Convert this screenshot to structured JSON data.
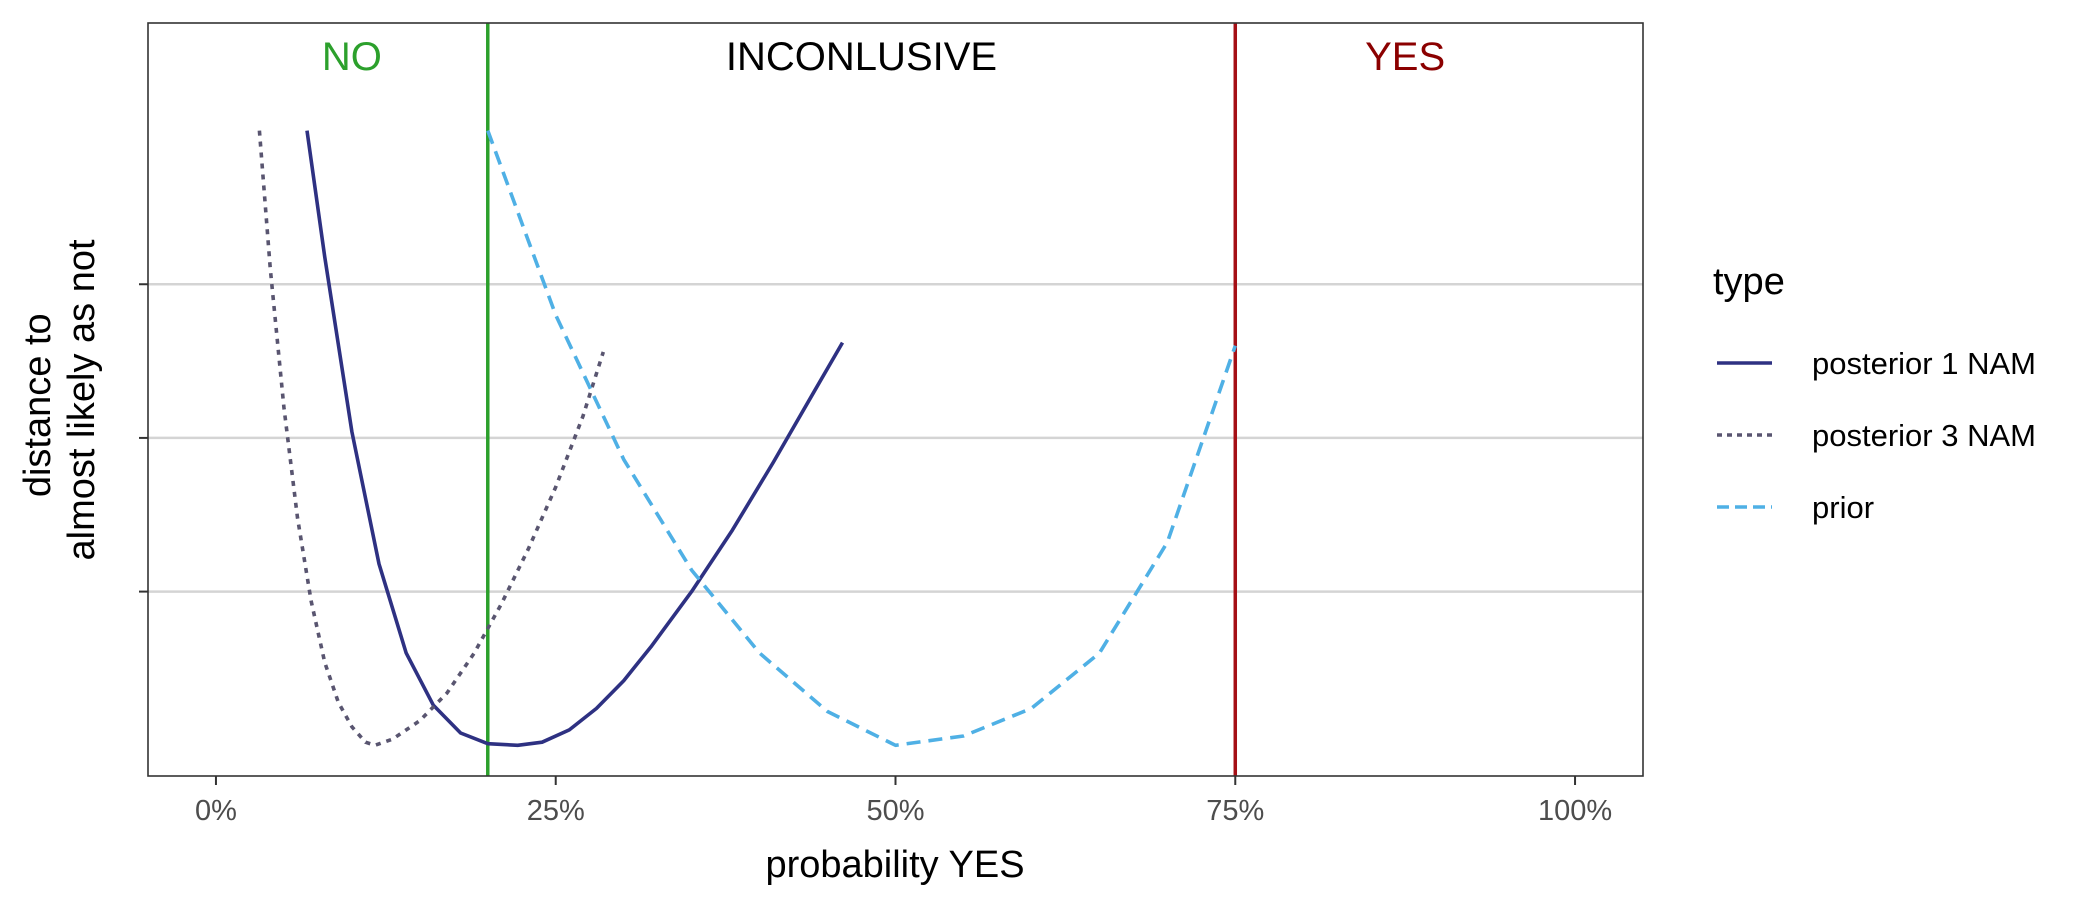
{
  "chart_data": {
    "type": "line",
    "xlabel": "probability YES",
    "ylabel_lines": [
      "distance to",
      "almost likely as not"
    ],
    "xlim": [
      -0.05,
      1.05
    ],
    "ylim": [
      -0.1,
      2.35
    ],
    "x_ticks": [
      {
        "value": 0.0,
        "label": "0%"
      },
      {
        "value": 0.25,
        "label": "25%"
      },
      {
        "value": 0.5,
        "label": "50%"
      },
      {
        "value": 0.75,
        "label": "75%"
      },
      {
        "value": 1.0,
        "label": "100%"
      }
    ],
    "y_ticks": [
      0.5,
      1.0,
      1.5
    ],
    "y_gridlines": true,
    "x_gridlines": false,
    "thresholds": [
      {
        "value": 0.2,
        "color": "#2ca02c"
      },
      {
        "value": 0.75,
        "color": "#a50f15"
      }
    ],
    "regions": [
      {
        "label": "NO",
        "x": 0.1,
        "color": "#2ca02c"
      },
      {
        "label": "INCONLUSIVE",
        "x": 0.475,
        "color": "#000000"
      },
      {
        "label": "YES",
        "x": 0.875,
        "color": "#8b0000"
      }
    ],
    "legend": {
      "title": "type",
      "position": "right"
    },
    "series": [
      {
        "name": "posterior 1 NAM",
        "color": "#2e3182",
        "dash": "solid",
        "points": [
          [
            0.067,
            2.0
          ],
          [
            0.08,
            1.59
          ],
          [
            0.1,
            1.02
          ],
          [
            0.12,
            0.59
          ],
          [
            0.14,
            0.3
          ],
          [
            0.16,
            0.13
          ],
          [
            0.18,
            0.04
          ],
          [
            0.2,
            0.005
          ],
          [
            0.222,
            0.0
          ],
          [
            0.24,
            0.01
          ],
          [
            0.26,
            0.05
          ],
          [
            0.28,
            0.12
          ],
          [
            0.3,
            0.21
          ],
          [
            0.32,
            0.32
          ],
          [
            0.35,
            0.5
          ],
          [
            0.38,
            0.7
          ],
          [
            0.41,
            0.92
          ],
          [
            0.44,
            1.15
          ],
          [
            0.461,
            1.31
          ]
        ]
      },
      {
        "name": "posterior 3 NAM",
        "color": "#595570",
        "dash": "dotted",
        "points": [
          [
            0.032,
            2.0
          ],
          [
            0.04,
            1.55
          ],
          [
            0.05,
            1.1
          ],
          [
            0.06,
            0.74
          ],
          [
            0.07,
            0.47
          ],
          [
            0.08,
            0.27
          ],
          [
            0.09,
            0.14
          ],
          [
            0.1,
            0.06
          ],
          [
            0.11,
            0.01
          ],
          [
            0.117,
            0.0
          ],
          [
            0.13,
            0.02
          ],
          [
            0.15,
            0.08
          ],
          [
            0.17,
            0.17
          ],
          [
            0.19,
            0.3
          ],
          [
            0.21,
            0.46
          ],
          [
            0.23,
            0.64
          ],
          [
            0.25,
            0.84
          ],
          [
            0.27,
            1.07
          ],
          [
            0.285,
            1.28
          ]
        ]
      },
      {
        "name": "prior",
        "color": "#4fb0e5",
        "dash": "dashed",
        "points": [
          [
            0.2,
            2.0
          ],
          [
            0.25,
            1.4
          ],
          [
            0.3,
            0.93
          ],
          [
            0.35,
            0.57
          ],
          [
            0.4,
            0.3
          ],
          [
            0.45,
            0.11
          ],
          [
            0.5,
            0.0
          ],
          [
            0.55,
            0.03
          ],
          [
            0.6,
            0.12
          ],
          [
            0.65,
            0.3
          ],
          [
            0.7,
            0.66
          ],
          [
            0.75,
            1.3
          ]
        ]
      }
    ]
  }
}
